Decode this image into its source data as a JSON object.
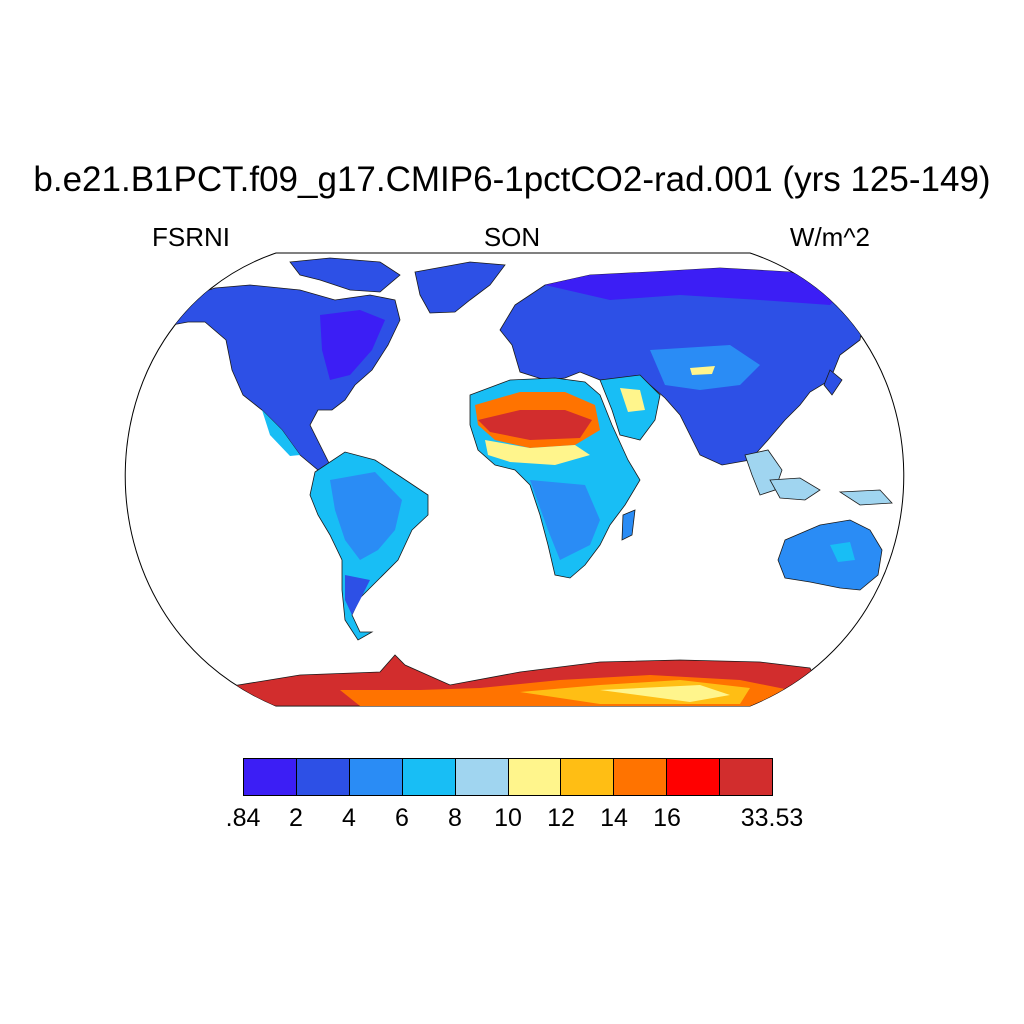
{
  "title": "b.e21.B1PCT.f09_g17.CMIP6-1pctCO2-rad.001 (yrs 125-149)",
  "variable": "FSRNI",
  "season": "SON",
  "units": "W/m^2",
  "colorbar": {
    "colors": [
      "#3c1ef5",
      "#2d50e6",
      "#2a8cf5",
      "#18bef5",
      "#a0d5f0",
      "#fff58c",
      "#ffbe14",
      "#ff7300",
      "#ff0000",
      "#d22d2d"
    ],
    "labels": [
      ".84",
      "2",
      "4",
      "6",
      "8",
      "10",
      "12",
      "14",
      "16",
      "33.53"
    ]
  }
}
